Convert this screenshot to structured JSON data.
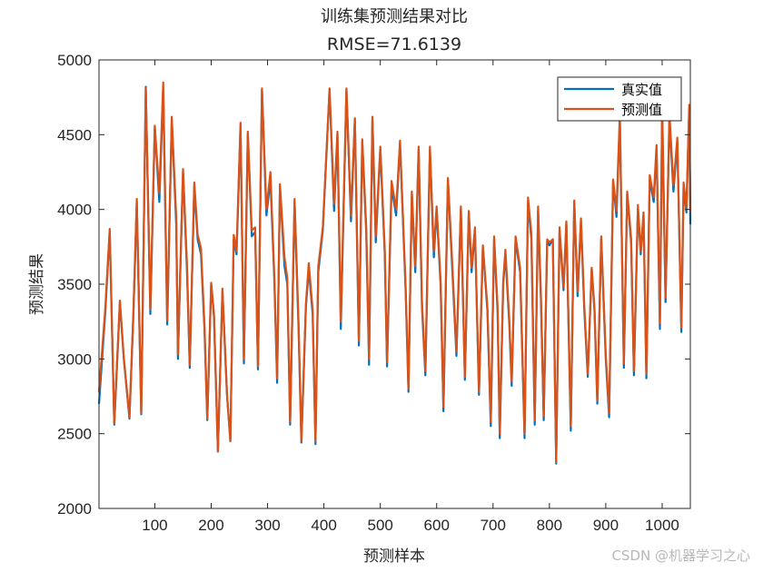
{
  "chart_data": {
    "type": "line",
    "title": "训练集预测结果对比",
    "subtitle": "RMSE=71.6139",
    "xlabel": "预测样本",
    "ylabel": "预测结果",
    "xlim": [
      1,
      1050
    ],
    "ylim": [
      2000,
      5000
    ],
    "xticks": [
      100,
      200,
      300,
      400,
      500,
      600,
      700,
      800,
      900,
      1000
    ],
    "yticks": [
      2000,
      2500,
      3000,
      3500,
      4000,
      4500,
      5000
    ],
    "grid": false,
    "legend_position": "top-right",
    "series": [
      {
        "name": "真实值",
        "color": "#0072BD",
        "keypoints": [
          [
            1,
            2700
          ],
          [
            12,
            3300
          ],
          [
            20,
            3850
          ],
          [
            28,
            2560
          ],
          [
            38,
            3380
          ],
          [
            45,
            3000
          ],
          [
            55,
            2600
          ],
          [
            62,
            3300
          ],
          [
            68,
            4050
          ],
          [
            76,
            2630
          ],
          [
            84,
            4820
          ],
          [
            92,
            3300
          ],
          [
            100,
            4550
          ],
          [
            108,
            4050
          ],
          [
            115,
            4800
          ],
          [
            122,
            3230
          ],
          [
            130,
            4600
          ],
          [
            138,
            3900
          ],
          [
            141,
            3000
          ],
          [
            150,
            4250
          ],
          [
            157,
            3600
          ],
          [
            162,
            2940
          ],
          [
            170,
            4150
          ],
          [
            176,
            3800
          ],
          [
            182,
            3700
          ],
          [
            188,
            3200
          ],
          [
            193,
            2590
          ],
          [
            200,
            3500
          ],
          [
            205,
            3280
          ],
          [
            212,
            2380
          ],
          [
            220,
            3450
          ],
          [
            228,
            2760
          ],
          [
            234,
            2450
          ],
          [
            240,
            3800
          ],
          [
            245,
            3700
          ],
          [
            252,
            4550
          ],
          [
            258,
            2970
          ],
          [
            265,
            4500
          ],
          [
            272,
            3820
          ],
          [
            278,
            3850
          ],
          [
            283,
            2930
          ],
          [
            290,
            4800
          ],
          [
            298,
            3960
          ],
          [
            305,
            4200
          ],
          [
            312,
            3530
          ],
          [
            317,
            2840
          ],
          [
            322,
            4150
          ],
          [
            330,
            3620
          ],
          [
            335,
            3500
          ],
          [
            340,
            2560
          ],
          [
            348,
            4050
          ],
          [
            355,
            3200
          ],
          [
            360,
            2440
          ],
          [
            368,
            3350
          ],
          [
            373,
            3600
          ],
          [
            380,
            3300
          ],
          [
            385,
            2430
          ],
          [
            390,
            3580
          ],
          [
            398,
            3860
          ],
          [
            410,
            4800
          ],
          [
            418,
            3990
          ],
          [
            424,
            4500
          ],
          [
            430,
            3200
          ],
          [
            440,
            4800
          ],
          [
            448,
            3920
          ],
          [
            455,
            4600
          ],
          [
            462,
            3090
          ],
          [
            468,
            4450
          ],
          [
            475,
            3850
          ],
          [
            480,
            2960
          ],
          [
            486,
            4600
          ],
          [
            492,
            3780
          ],
          [
            500,
            4400
          ],
          [
            508,
            3700
          ],
          [
            512,
            2950
          ],
          [
            520,
            4150
          ],
          [
            528,
            3960
          ],
          [
            535,
            4440
          ],
          [
            545,
            3450
          ],
          [
            550,
            2780
          ],
          [
            556,
            4100
          ],
          [
            562,
            3580
          ],
          [
            568,
            4400
          ],
          [
            574,
            3340
          ],
          [
            580,
            2890
          ],
          [
            588,
            4400
          ],
          [
            595,
            3680
          ],
          [
            600,
            4000
          ],
          [
            607,
            3490
          ],
          [
            612,
            2650
          ],
          [
            620,
            4200
          ],
          [
            627,
            3650
          ],
          [
            635,
            3020
          ],
          [
            643,
            4000
          ],
          [
            650,
            2860
          ],
          [
            657,
            3980
          ],
          [
            662,
            3580
          ],
          [
            668,
            3860
          ],
          [
            675,
            2760
          ],
          [
            682,
            3750
          ],
          [
            690,
            3320
          ],
          [
            696,
            2550
          ],
          [
            702,
            3800
          ],
          [
            708,
            3320
          ],
          [
            712,
            2470
          ],
          [
            718,
            3500
          ],
          [
            722,
            3700
          ],
          [
            729,
            3220
          ],
          [
            733,
            2820
          ],
          [
            740,
            3800
          ],
          [
            748,
            3580
          ],
          [
            756,
            2470
          ],
          [
            762,
            4050
          ],
          [
            768,
            3800
          ],
          [
            774,
            2560
          ],
          [
            780,
            3990
          ],
          [
            785,
            3400
          ],
          [
            790,
            2590
          ],
          [
            796,
            3780
          ],
          [
            800,
            3760
          ],
          [
            806,
            3800
          ],
          [
            812,
            2300
          ],
          [
            818,
            3850
          ],
          [
            825,
            3460
          ],
          [
            830,
            3900
          ],
          [
            838,
            2520
          ],
          [
            844,
            4050
          ],
          [
            850,
            3420
          ],
          [
            856,
            3920
          ],
          [
            862,
            3320
          ],
          [
            868,
            2880
          ],
          [
            875,
            3600
          ],
          [
            880,
            3320
          ],
          [
            885,
            2700
          ],
          [
            892,
            3800
          ],
          [
            900,
            3000
          ],
          [
            906,
            2610
          ],
          [
            913,
            4190
          ],
          [
            919,
            3950
          ],
          [
            925,
            4600
          ],
          [
            932,
            2940
          ],
          [
            938,
            4100
          ],
          [
            945,
            3780
          ],
          [
            950,
            2890
          ],
          [
            957,
            4000
          ],
          [
            962,
            3700
          ],
          [
            967,
            3950
          ],
          [
            972,
            2870
          ],
          [
            978,
            4200
          ],
          [
            985,
            4050
          ],
          [
            990,
            4400
          ],
          [
            996,
            3200
          ],
          [
            1000,
            4650
          ],
          [
            1006,
            3380
          ],
          [
            1013,
            4600
          ],
          [
            1020,
            4120
          ],
          [
            1027,
            4450
          ],
          [
            1034,
            3180
          ],
          [
            1038,
            4150
          ],
          [
            1043,
            3980
          ],
          [
            1048,
            4680
          ],
          [
            1050,
            3900
          ]
        ]
      },
      {
        "name": "预测值",
        "color": "#D95319",
        "keypoints": [
          [
            1,
            2780
          ],
          [
            12,
            3330
          ],
          [
            20,
            3870
          ],
          [
            28,
            2570
          ],
          [
            38,
            3390
          ],
          [
            45,
            3010
          ],
          [
            55,
            2610
          ],
          [
            62,
            3320
          ],
          [
            68,
            4070
          ],
          [
            76,
            2640
          ],
          [
            84,
            4810
          ],
          [
            92,
            3330
          ],
          [
            100,
            4560
          ],
          [
            108,
            4110
          ],
          [
            115,
            4850
          ],
          [
            122,
            3260
          ],
          [
            130,
            4620
          ],
          [
            138,
            3950
          ],
          [
            141,
            3030
          ],
          [
            150,
            4270
          ],
          [
            157,
            3640
          ],
          [
            162,
            2960
          ],
          [
            170,
            4180
          ],
          [
            176,
            3830
          ],
          [
            182,
            3740
          ],
          [
            188,
            3230
          ],
          [
            193,
            2600
          ],
          [
            200,
            3510
          ],
          [
            205,
            3300
          ],
          [
            212,
            2380
          ],
          [
            220,
            3470
          ],
          [
            228,
            2770
          ],
          [
            234,
            2450
          ],
          [
            240,
            3830
          ],
          [
            245,
            3720
          ],
          [
            252,
            4580
          ],
          [
            258,
            3000
          ],
          [
            265,
            4520
          ],
          [
            272,
            3860
          ],
          [
            278,
            3880
          ],
          [
            283,
            2950
          ],
          [
            290,
            4810
          ],
          [
            298,
            4000
          ],
          [
            305,
            4250
          ],
          [
            312,
            3560
          ],
          [
            317,
            2870
          ],
          [
            322,
            4170
          ],
          [
            330,
            3680
          ],
          [
            335,
            3540
          ],
          [
            340,
            2580
          ],
          [
            348,
            4070
          ],
          [
            355,
            3240
          ],
          [
            360,
            2450
          ],
          [
            368,
            3370
          ],
          [
            373,
            3640
          ],
          [
            380,
            3330
          ],
          [
            385,
            2450
          ],
          [
            390,
            3620
          ],
          [
            398,
            3880
          ],
          [
            410,
            4810
          ],
          [
            418,
            4040
          ],
          [
            424,
            4520
          ],
          [
            430,
            3250
          ],
          [
            440,
            4810
          ],
          [
            448,
            3960
          ],
          [
            455,
            4610
          ],
          [
            462,
            3120
          ],
          [
            468,
            4470
          ],
          [
            475,
            3880
          ],
          [
            480,
            3000
          ],
          [
            486,
            4620
          ],
          [
            492,
            3820
          ],
          [
            500,
            4420
          ],
          [
            508,
            3730
          ],
          [
            512,
            2980
          ],
          [
            520,
            4190
          ],
          [
            528,
            4000
          ],
          [
            535,
            4460
          ],
          [
            545,
            3480
          ],
          [
            550,
            2800
          ],
          [
            556,
            4120
          ],
          [
            562,
            3620
          ],
          [
            568,
            4420
          ],
          [
            574,
            3380
          ],
          [
            580,
            2920
          ],
          [
            588,
            4420
          ],
          [
            595,
            3720
          ],
          [
            600,
            4020
          ],
          [
            607,
            3520
          ],
          [
            612,
            2680
          ],
          [
            620,
            4210
          ],
          [
            627,
            3690
          ],
          [
            635,
            3050
          ],
          [
            643,
            4020
          ],
          [
            650,
            2880
          ],
          [
            657,
            3990
          ],
          [
            662,
            3610
          ],
          [
            668,
            3880
          ],
          [
            675,
            2780
          ],
          [
            682,
            3760
          ],
          [
            690,
            3350
          ],
          [
            696,
            2580
          ],
          [
            702,
            3820
          ],
          [
            708,
            3350
          ],
          [
            712,
            2500
          ],
          [
            718,
            3520
          ],
          [
            722,
            3730
          ],
          [
            729,
            3250
          ],
          [
            733,
            2850
          ],
          [
            740,
            3820
          ],
          [
            748,
            3610
          ],
          [
            756,
            2500
          ],
          [
            762,
            4080
          ],
          [
            768,
            3840
          ],
          [
            774,
            2590
          ],
          [
            780,
            4020
          ],
          [
            785,
            3430
          ],
          [
            790,
            2620
          ],
          [
            796,
            3800
          ],
          [
            800,
            3780
          ],
          [
            806,
            3800
          ],
          [
            812,
            2310
          ],
          [
            818,
            3880
          ],
          [
            825,
            3480
          ],
          [
            830,
            3920
          ],
          [
            838,
            2550
          ],
          [
            844,
            4060
          ],
          [
            850,
            3450
          ],
          [
            856,
            3940
          ],
          [
            862,
            3350
          ],
          [
            868,
            2900
          ],
          [
            875,
            3610
          ],
          [
            880,
            3340
          ],
          [
            885,
            2720
          ],
          [
            892,
            3820
          ],
          [
            900,
            3030
          ],
          [
            906,
            2640
          ],
          [
            913,
            4200
          ],
          [
            919,
            3990
          ],
          [
            925,
            4640
          ],
          [
            932,
            2970
          ],
          [
            938,
            4120
          ],
          [
            945,
            3810
          ],
          [
            950,
            2920
          ],
          [
            957,
            4030
          ],
          [
            962,
            3720
          ],
          [
            967,
            3980
          ],
          [
            972,
            2900
          ],
          [
            978,
            4230
          ],
          [
            985,
            4080
          ],
          [
            990,
            4430
          ],
          [
            996,
            3240
          ],
          [
            1000,
            4700
          ],
          [
            1006,
            3410
          ],
          [
            1013,
            4640
          ],
          [
            1020,
            4160
          ],
          [
            1027,
            4480
          ],
          [
            1034,
            3210
          ],
          [
            1038,
            4180
          ],
          [
            1043,
            4010
          ],
          [
            1048,
            4700
          ],
          [
            1050,
            3980
          ]
        ]
      }
    ]
  },
  "watermark": "CSDN @机器学习之心"
}
